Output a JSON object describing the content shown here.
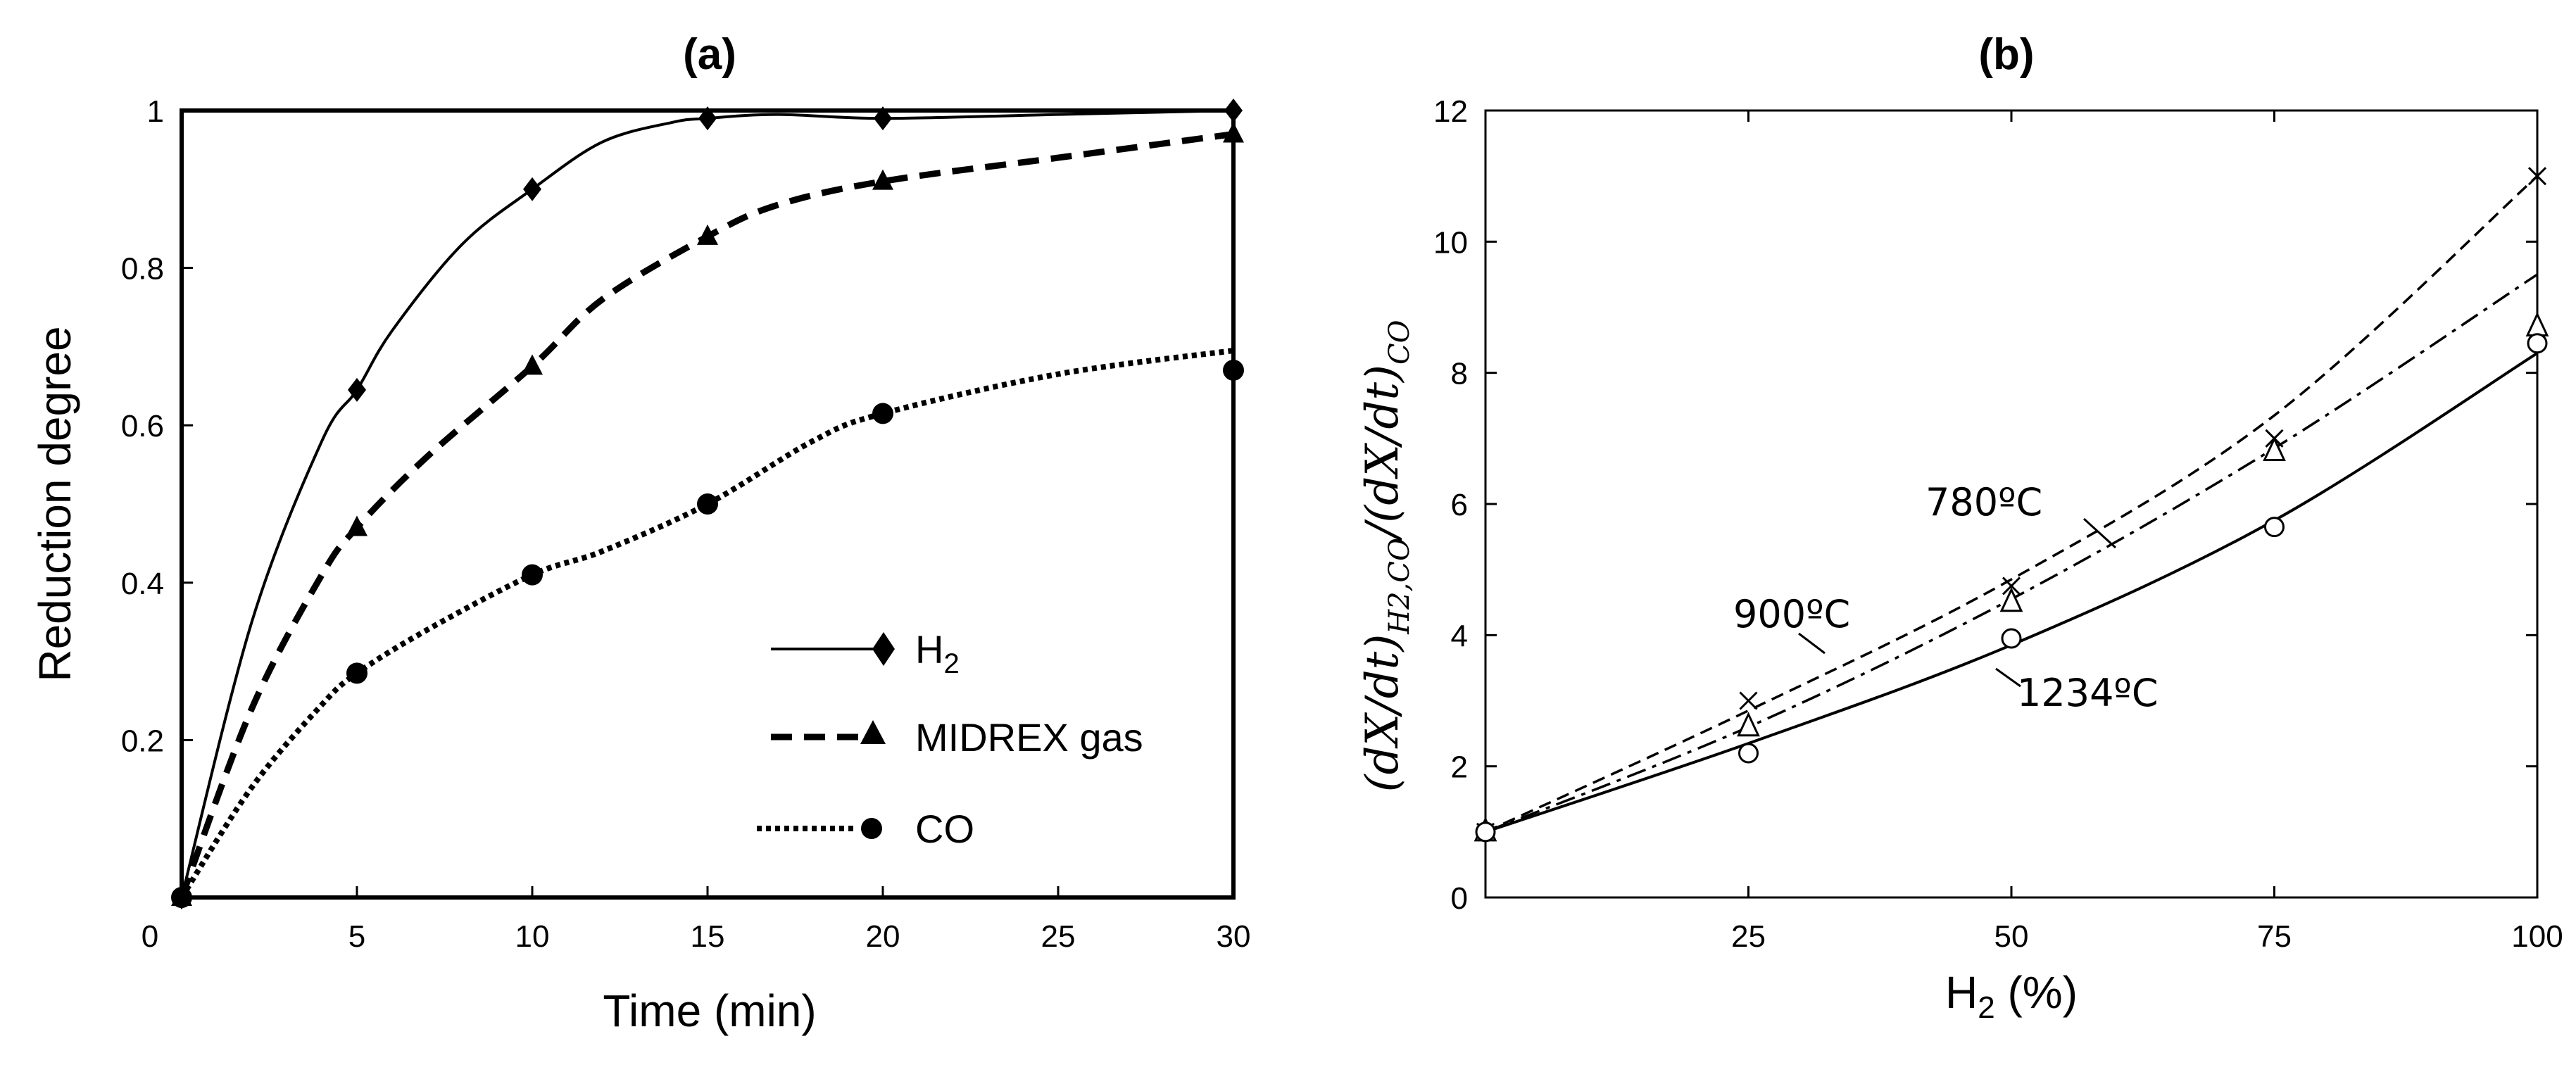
{
  "chart_data": [
    {
      "panel": "(a)",
      "type": "line",
      "title": "(a)",
      "xlabel": "Time (min)",
      "ylabel": "Reduction degree",
      "xlim": [
        0,
        30
      ],
      "ylim": [
        0,
        1
      ],
      "x_tick_labels": [
        "0",
        "5",
        "10",
        "15",
        "20",
        "25",
        "30"
      ],
      "y_tick_labels": [
        "0.2",
        "0.4",
        "0.6",
        "0.8",
        "1"
      ],
      "x_ticks": [
        0,
        5,
        10,
        15,
        20,
        25,
        30
      ],
      "y_ticks": [
        0.2,
        0.4,
        0.6,
        0.8,
        1.0
      ],
      "grid": false,
      "legend": "center-right",
      "series": [
        {
          "name": "H",
          "name_sub": "2",
          "line": "solid",
          "marker": "diamond",
          "x": [
            0,
            5,
            10,
            15,
            20,
            30
          ],
          "y": [
            0.0,
            0.645,
            0.9,
            0.99,
            0.99,
            1.0
          ],
          "curve_x": [
            0,
            2,
            4,
            5,
            6,
            8,
            10,
            12,
            14,
            15,
            17,
            20,
            25,
            30
          ],
          "curve_y": [
            0.0,
            0.35,
            0.58,
            0.645,
            0.72,
            0.83,
            0.9,
            0.96,
            0.985,
            0.99,
            0.995,
            0.99,
            0.995,
            1.0
          ]
        },
        {
          "name": "MIDREX gas",
          "name_sub": "",
          "line": "dashed",
          "marker": "triangle",
          "x": [
            0,
            5,
            10,
            15,
            20,
            30
          ],
          "y": [
            0.0,
            0.47,
            0.675,
            0.84,
            0.91,
            0.97
          ],
          "curve_x": [
            0,
            2,
            4,
            5,
            7,
            10,
            12,
            15,
            17,
            20,
            25,
            30
          ],
          "curve_y": [
            0.0,
            0.24,
            0.41,
            0.47,
            0.56,
            0.675,
            0.76,
            0.84,
            0.88,
            0.91,
            0.94,
            0.97
          ]
        },
        {
          "name": "CO",
          "name_sub": "",
          "line": "dotted",
          "marker": "circle",
          "x": [
            0,
            5,
            10,
            15,
            20,
            30
          ],
          "y": [
            0.0,
            0.285,
            0.41,
            0.5,
            0.615,
            0.67
          ],
          "curve_x": [
            0,
            2,
            4,
            5,
            7,
            10,
            12,
            15,
            18,
            20,
            25,
            30
          ],
          "curve_y": [
            0.0,
            0.14,
            0.245,
            0.285,
            0.34,
            0.41,
            0.44,
            0.5,
            0.58,
            0.615,
            0.665,
            0.695
          ]
        }
      ]
    },
    {
      "panel": "(b)",
      "type": "line",
      "title": "(b)",
      "xlabel": "H",
      "xlabel_sub": "2",
      "xlabel_rest": " (%)",
      "ylabel": "(dX/dt)H2,CO/(dX/dt)CO",
      "ylabel_parts": {
        "a": "(dX/dt)",
        "a_sub": "H2,CO",
        "b": "/(dX/dt)",
        "b_sub": "CO"
      },
      "xlim": [
        0,
        100
      ],
      "ylim": [
        0,
        12
      ],
      "x_tick_labels": [
        "25",
        "50",
        "75",
        "100"
      ],
      "y_tick_labels": [
        "0",
        "2",
        "4",
        "6",
        "8",
        "10",
        "12"
      ],
      "x_ticks": [
        25,
        50,
        75,
        100
      ],
      "y_ticks": [
        0,
        2,
        4,
        6,
        8,
        10,
        12
      ],
      "grid": false,
      "annotations": [
        "780ºC",
        "900ºC",
        "1234ºC"
      ],
      "series": [
        {
          "name": "900ºC",
          "line": "dashed",
          "marker": "x",
          "x": [
            0,
            25,
            50,
            75,
            100
          ],
          "y": [
            1.0,
            3.0,
            4.75,
            7.0,
            11.0
          ],
          "curve_x": [
            0,
            25,
            50,
            75,
            100
          ],
          "curve_y": [
            1.0,
            2.85,
            4.85,
            7.35,
            11.0
          ]
        },
        {
          "name": "780ºC",
          "line": "dashdot",
          "marker": "triangle-open",
          "x": [
            0,
            25,
            50,
            75,
            100
          ],
          "y": [
            1.0,
            2.6,
            4.5,
            6.8,
            8.7
          ],
          "curve_x": [
            0,
            25,
            50,
            75,
            100
          ],
          "curve_y": [
            1.0,
            2.6,
            4.55,
            6.85,
            9.5
          ]
        },
        {
          "name": "1234ºC",
          "line": "solid",
          "marker": "circle-open",
          "x": [
            0,
            25,
            50,
            75,
            100
          ],
          "y": [
            1.0,
            2.2,
            3.95,
            5.65,
            8.45
          ],
          "curve_x": [
            0,
            25,
            50,
            75,
            100
          ],
          "curve_y": [
            1.0,
            2.35,
            3.85,
            5.75,
            8.3
          ]
        }
      ]
    }
  ]
}
